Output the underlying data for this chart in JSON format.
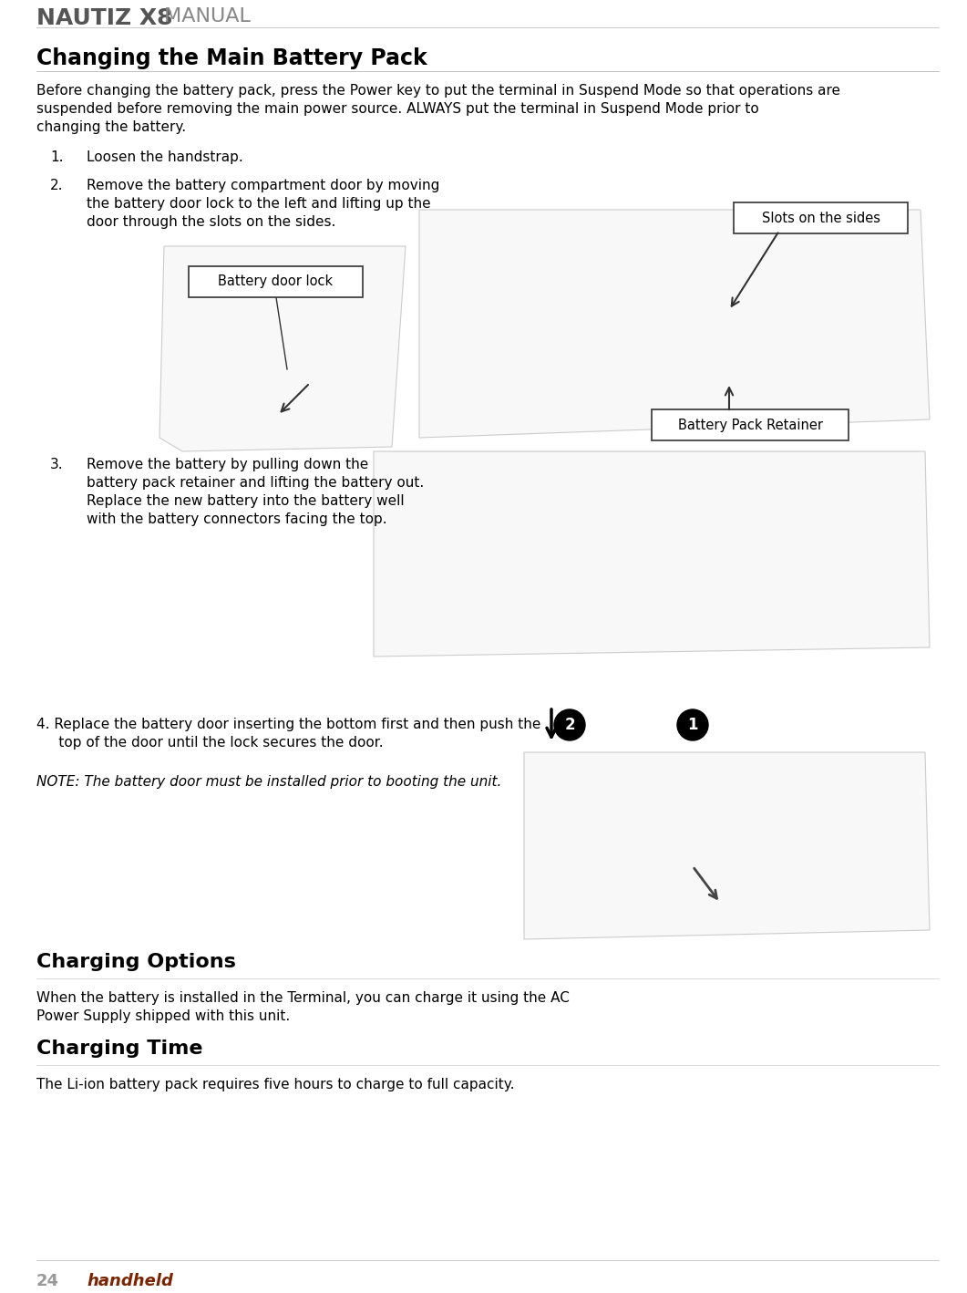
{
  "page_bg": "#ffffff",
  "header_brand": "NAUTIZ X8",
  "header_manual": " MANUAL",
  "header_brand_color": "#555555",
  "header_manual_color": "#888888",
  "page_number": "24",
  "page_number_color": "#999999",
  "footer_handheld": "handheld",
  "footer_handheld_color": "#7B2500",
  "section_title": "Changing the Main Battery Pack",
  "intro_line1": "Before changing the battery pack, press the Power key to put the terminal in Suspend Mode so that operations are",
  "intro_line2": "suspended before removing the main power source. ALWAYS put the terminal in Suspend Mode prior to",
  "intro_line3": "changing the battery.",
  "step1_text": "Loosen the handstrap.",
  "step2_text_line1": "Remove the battery compartment door by moving",
  "step2_text_line2": "the battery door lock to the left and lifting up the",
  "step2_text_line3": "door through the slots on the sides.",
  "step3_text_line1": "Remove the battery by pulling down the",
  "step3_text_line2": "battery pack retainer and lifting the battery out.",
  "step3_text_line3": "Replace the new battery into the battery well",
  "step3_text_line4": "with the battery connectors facing the top.",
  "step4_line1": "4. Replace the battery door inserting the bottom first and then push the",
  "step4_line2": "     top of the door until the lock secures the door.",
  "note_text": "NOTE: The battery door must be installed prior to booting the unit.",
  "charging_options_title": "Charging Options",
  "charging_options_line1": "When the battery is installed in the Terminal, you can charge it using the AC",
  "charging_options_line2": "Power Supply shipped with this unit.",
  "charging_time_title": "Charging Time",
  "charging_time_text": "The Li-ion battery pack requires five hours to charge to full capacity.",
  "callout_battery_door_lock": "Battery door lock",
  "callout_slots": "Slots on the sides",
  "callout_retainer": "Battery Pack Retainer",
  "body_fontsize": 11,
  "step_fontsize": 11,
  "callout_fontsize": 10.5,
  "section_title_fontsize": 17,
  "section2_title_fontsize": 16,
  "header_fontsize": 18,
  "footer_fontsize": 13
}
